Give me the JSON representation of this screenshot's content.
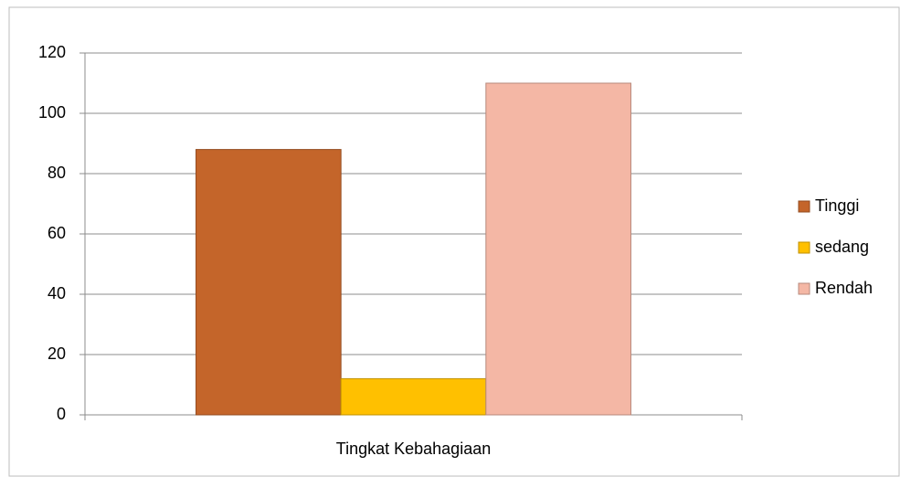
{
  "chart_data": {
    "type": "bar",
    "categories": [
      "Tingkat Kebahagiaan"
    ],
    "series": [
      {
        "name": "Tinggi",
        "color": "#c4652a",
        "values": [
          88
        ]
      },
      {
        "name": "sedang",
        "color": "#ffc000",
        "values": [
          12
        ]
      },
      {
        "name": "Rendah",
        "color": "#f4b7a5",
        "values": [
          110
        ]
      }
    ],
    "ylim": [
      0,
      120
    ],
    "yticks": [
      0,
      20,
      40,
      60,
      80,
      100,
      120
    ],
    "grid": true,
    "legend": "right"
  }
}
